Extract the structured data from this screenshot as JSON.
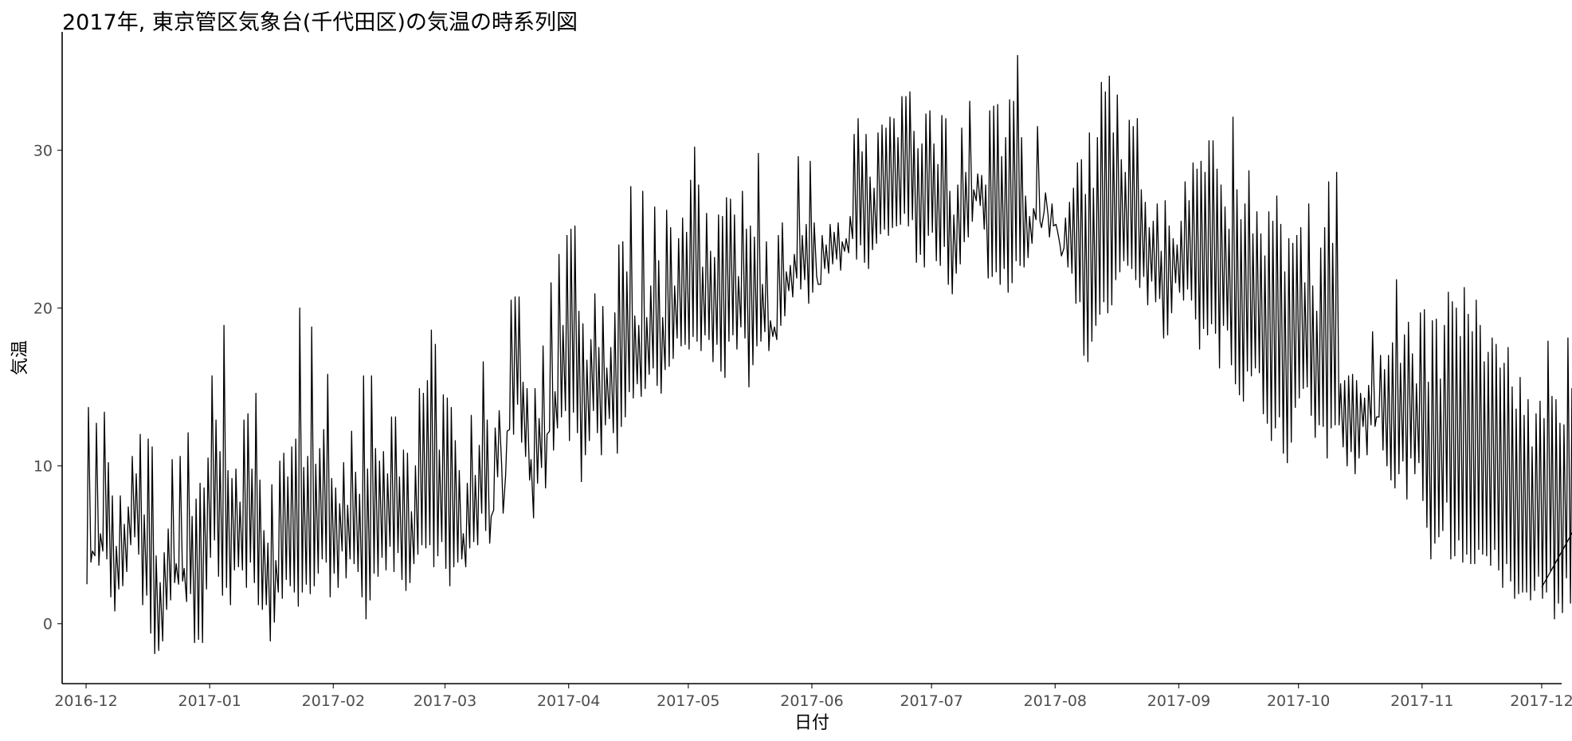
{
  "chart_data": {
    "type": "line",
    "title": "2017年, 東京管区気象台(千代田区)の気温の時系列図",
    "xlabel": "日付",
    "ylabel": "気温",
    "x_ticks": [
      "2016-12",
      "2017-01",
      "2017-02",
      "2017-03",
      "2017-04",
      "2017-05",
      "2017-06",
      "2017-07",
      "2017-08",
      "2017-09",
      "2017-10",
      "2017-11",
      "2017-12"
    ],
    "y_ticks": [
      0,
      10,
      20,
      30
    ],
    "xlim": [
      "2016-11-25",
      "2017-12-06"
    ],
    "ylim": [
      -3.8,
      37.5
    ],
    "grid": false,
    "legend": "none",
    "line_color": "#000000",
    "sampling": "hourly readings, daily cycle",
    "series": [
      {
        "x_start": "2016-12-01",
        "x_end": "2017-12-01",
        "daily_max": [
          13.7,
          4.6,
          12.7,
          5.7,
          13.4,
          10.2,
          8.1,
          4.9,
          8.1,
          6.3,
          7.4,
          10.6,
          9.5,
          12.0,
          6.9,
          11.7,
          11.2,
          4.3,
          2.6,
          4.5,
          6.0,
          10.4,
          3.8,
          10.6,
          3.5,
          12.1,
          6.8,
          7.9,
          8.9,
          8.6,
          10.5,
          15.7,
          12.9,
          10.9,
          18.9,
          9.7,
          9.2,
          9.8,
          7.7,
          12.9,
          13.3,
          9.8,
          14.6,
          9.1,
          5.9,
          5.1,
          8.8,
          4.0,
          10.3,
          10.8,
          9.3,
          11.2,
          11.7,
          20.0,
          9.9,
          10.6,
          18.8,
          10.1,
          11.1,
          12.3,
          15.8,
          9.2,
          8.6,
          7.6,
          10.2,
          7.5,
          12.2,
          9.6,
          8.2,
          15.7,
          9.8,
          15.7,
          11.1,
          10.3,
          10.9,
          9.5,
          13.1,
          13.1,
          9.3,
          11.0,
          10.8,
          7.1,
          10.0,
          14.9,
          14.6,
          15.4,
          18.6,
          17.7,
          11.0,
          14.5,
          14.3,
          13.7,
          11.6,
          9.7,
          5.7,
          8.9,
          13.2,
          9.4,
          11.3,
          16.6,
          12.9,
          6.8,
          12.4,
          13.5,
          7.0,
          12.2,
          20.5,
          20.7,
          20.7,
          15.3,
          14.9,
          10.4,
          14.9,
          13.0,
          17.6,
          12.0,
          21.6,
          14.7,
          23.4,
          18.9,
          24.6,
          25.0,
          25.2,
          19.8,
          19.0,
          16.7,
          18.0,
          20.9,
          17.5,
          20.1,
          16.2,
          17.5,
          19.7,
          24.0,
          24.2,
          22.3,
          27.7,
          19.5,
          18.9,
          27.4,
          19.4,
          21.4,
          26.4,
          23.0,
          19.4,
          26.2,
          25.1,
          21.4,
          24.4,
          25.7,
          24.8,
          28.1,
          30.2,
          27.8,
          22.6,
          26.0,
          23.6,
          23.2,
          25.9,
          25.8,
          27.0,
          26.9,
          25.9,
          22.0,
          27.4,
          25.0,
          25.2,
          24.5,
          29.8,
          21.5,
          24.2,
          19.2,
          18.8,
          24.6,
          25.4,
          22.3,
          22.7,
          23.4,
          29.6,
          24.6,
          25.3,
          29.3,
          25.4,
          21.5,
          24.6,
          24.0,
          25.3,
          24.8,
          25.4,
          24.2,
          24.4,
          25.8,
          31.0,
          32.0,
          29.9,
          31.0,
          28.3,
          27.6,
          31.1,
          31.6,
          31.4,
          32.1,
          32.0,
          30.8,
          33.4,
          33.4,
          33.7,
          31.2,
          30.1,
          30.4,
          32.3,
          32.5,
          30.4,
          29.1,
          32.2,
          32.0,
          27.4,
          25.9,
          27.8,
          31.4,
          28.6,
          33.1,
          27.5,
          28.5,
          28.4,
          27.8,
          32.5,
          32.8,
          32.9,
          29.6,
          30.8,
          33.2,
          33.1,
          36.0,
          30.8,
          27.1,
          25.8,
          26.3,
          31.5,
          25.1,
          27.3,
          24.5,
          25.2,
          24.9,
          23.3,
          25.7,
          26.7,
          27.6,
          29.2,
          29.4,
          27.2,
          31.1,
          27.6,
          30.8,
          34.3,
          33.7,
          34.7,
          31.1,
          33.5,
          29.4,
          28.6,
          31.9,
          31.5,
          32.0,
          27.5,
          26.7,
          25.1,
          25.5,
          26.6,
          23.6,
          26.8,
          25.2,
          24.4,
          24.0,
          25.5,
          28.0,
          26.8,
          29.2,
          28.8,
          29.3,
          28.6,
          30.6,
          30.6,
          28.8,
          27.8,
          26.4,
          25.0,
          32.1,
          27.5,
          25.6,
          26.6,
          28.7,
          24.7,
          26.1,
          24.7,
          23.3,
          26.1,
          25.5,
          27.1,
          25.3,
          22.3,
          24.4,
          24.1,
          24.6,
          25.1,
          21.6,
          26.6,
          21.4,
          19.8,
          23.8,
          25.1,
          28.0,
          24.1,
          28.6,
          15.2,
          15.4,
          15.7,
          15.8,
          15.4,
          14.6,
          14.3,
          15.1,
          18.5,
          13.1,
          17.0,
          16.1,
          17.0,
          17.8,
          21.8,
          16.5,
          18.3,
          19.1,
          17.1,
          15.2,
          19.7,
          19.9,
          15.3,
          19.2,
          19.3,
          15.5,
          18.9,
          21.0,
          20.4,
          20.0,
          18.2,
          21.3,
          19.6,
          18.5,
          20.5,
          18.9,
          16.6,
          17.2,
          18.1,
          17.7,
          16.2,
          16.5,
          17.5,
          15.0,
          13.6,
          15.6,
          13.2,
          14.2,
          11.2,
          13.3,
          14.1,
          13.0,
          17.9,
          14.4,
          14.2,
          12.7,
          12.6,
          18.1,
          14.9,
          13.3,
          11.8,
          11.3,
          10.8,
          10.0,
          10.6,
          9.8,
          9.7,
          13.2,
          15.9,
          9.4,
          11.3,
          11.6,
          9.8,
          8.1,
          12.8,
          10.1,
          8.5,
          8.3,
          8.7,
          12.2,
          10.7,
          9.2,
          13.2,
          14.9,
          11.6,
          9.6,
          10.8,
          8.8,
          10.6,
          8.9,
          5.3
        ],
        "daily_min": [
          2.5,
          3.9,
          4.3,
          3.7,
          4.6,
          4.1,
          1.7,
          0.8,
          2.2,
          2.4,
          3.3,
          5.0,
          5.5,
          4.4,
          1.2,
          1.8,
          -0.6,
          -1.9,
          -1.7,
          -1.1,
          0.9,
          1.5,
          2.6,
          2.5,
          2.7,
          1.4,
          1.9,
          -1.2,
          -1.0,
          -1.2,
          2.2,
          4.2,
          5.3,
          3.0,
          1.8,
          2.3,
          1.2,
          3.4,
          3.6,
          3.4,
          2.3,
          3.9,
          2.6,
          1.2,
          0.9,
          1.2,
          -1.1,
          0.1,
          2.0,
          1.6,
          2.8,
          2.4,
          2.0,
          1.1,
          2.0,
          2.5,
          1.9,
          2.4,
          3.2,
          4.1,
          3.9,
          1.7,
          3.2,
          2.3,
          4.6,
          2.9,
          4.1,
          3.8,
          3.3,
          1.7,
          0.3,
          1.5,
          3.2,
          3.0,
          4.2,
          3.4,
          4.9,
          3.3,
          4.5,
          2.8,
          2.1,
          2.6,
          3.8,
          4.4,
          5.0,
          4.8,
          5.0,
          3.6,
          4.3,
          5.2,
          3.5,
          2.4,
          3.6,
          3.9,
          4.1,
          3.6,
          4.8,
          5.2,
          5.0,
          7.0,
          5.9,
          5.1,
          7.2,
          9.3,
          10.1,
          9.4,
          12.3,
          12.0,
          13.9,
          11.5,
          10.6,
          9.1,
          6.7,
          8.9,
          9.9,
          8.6,
          12.2,
          11.0,
          12.4,
          13.1,
          13.5,
          11.6,
          13.4,
          12.1,
          9.0,
          10.7,
          11.6,
          13.5,
          12.1,
          10.7,
          12.6,
          13.0,
          12.1,
          10.8,
          12.5,
          13.1,
          14.7,
          14.3,
          15.2,
          14.4,
          14.9,
          15.8,
          16.2,
          15.1,
          14.6,
          16.1,
          16.3,
          16.8,
          18.1,
          17.6,
          17.7,
          17.4,
          18.2,
          17.9,
          17.3,
          18.3,
          18.0,
          16.6,
          17.7,
          16.0,
          15.6,
          17.9,
          18.3,
          17.4,
          18.8,
          18.1,
          15.0,
          16.4,
          17.6,
          17.9,
          18.5,
          17.3,
          18.2,
          18.0,
          18.9,
          19.5,
          21.1,
          20.7,
          21.9,
          21.2,
          21.8,
          20.3,
          21.0,
          22.0,
          21.5,
          22.5,
          22.2,
          22.8,
          23.1,
          22.4,
          23.6,
          23.5,
          24.4,
          23.1,
          24.0,
          22.9,
          22.5,
          23.7,
          24.1,
          24.7,
          25.0,
          24.6,
          25.1,
          25.2,
          25.3,
          26.0,
          25.2,
          25.6,
          22.9,
          23.4,
          22.6,
          24.6,
          24.8,
          23.0,
          22.7,
          23.9,
          21.5,
          20.9,
          22.2,
          22.8,
          24.2,
          24.5,
          25.5,
          26.8,
          26.5,
          25.0,
          21.9,
          22.0,
          22.3,
          21.5,
          22.5,
          21.0,
          21.6,
          23.0,
          22.7,
          22.6,
          23.2,
          24.1,
          25.6,
          25.5,
          26.1,
          25.9,
          26.6,
          25.3,
          24.0,
          23.8,
          22.6,
          22.2,
          20.3,
          20.4,
          17.0,
          16.6,
          17.9,
          18.9,
          19.6,
          20.4,
          19.7,
          20.2,
          21.8,
          22.3,
          23.0,
          22.7,
          22.5,
          21.8,
          21.3,
          22.0,
          20.2,
          21.7,
          20.4,
          20.6,
          18.1,
          18.3,
          19.7,
          21.6,
          21.0,
          20.5,
          21.2,
          20.5,
          19.3,
          17.4,
          18.7,
          18.3,
          19.0,
          18.4,
          16.2,
          18.9,
          18.6,
          16.4,
          15.2,
          14.5,
          14.1,
          16.0,
          15.7,
          16.2,
          15.9,
          13.3,
          12.7,
          11.6,
          12.4,
          13.1,
          10.8,
          10.2,
          11.5,
          13.7,
          14.3,
          14.9,
          15.0,
          13.2,
          11.8,
          12.6,
          12.5,
          10.5,
          12.4,
          12.6,
          12.6,
          11.2,
          10.0,
          10.9,
          9.5,
          10.5,
          12.5,
          10.7,
          12.6,
          12.5,
          13.1,
          11.0,
          10.0,
          9.1,
          8.6,
          9.5,
          10.3,
          7.9,
          10.5,
          9.5,
          10.2,
          7.8,
          6.1,
          4.1,
          5.1,
          5.5,
          5.9,
          7.7,
          4.1,
          4.3,
          5.3,
          3.9,
          4.4,
          3.8,
          3.8,
          4.7,
          4.4,
          4.3,
          3.7,
          4.7,
          3.4,
          2.3,
          3.8,
          2.7,
          1.6,
          1.9,
          2.0,
          2.0,
          1.5,
          2.1,
          3.0,
          1.6,
          2.0,
          3.3,
          0.3,
          1.3,
          0.7,
          2.9,
          1.3,
          3.4,
          4.3,
          2.6,
          2.3,
          1.4,
          1.6,
          3.1,
          2.3,
          1.6,
          1.5,
          2.4,
          4.1,
          2.3
        ]
      }
    ]
  }
}
